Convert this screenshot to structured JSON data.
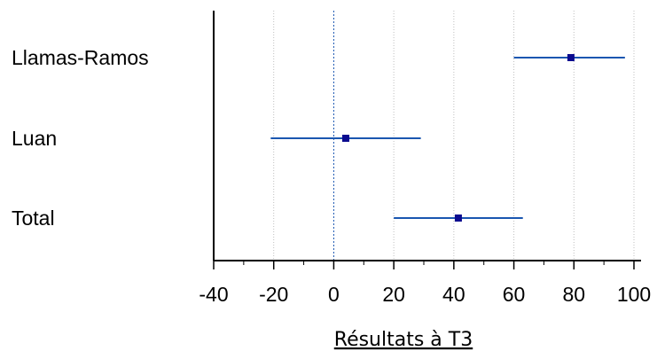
{
  "chart_data": {
    "type": "forest",
    "xlabel": "Résultats à T3",
    "xlim": [
      -40,
      100
    ],
    "x_ticks": [
      -40,
      -20,
      0,
      20,
      40,
      60,
      80,
      100
    ],
    "grid": "vertical dotted",
    "studies": [
      {
        "label": "Llamas-Ramos",
        "estimate": 79,
        "ci_low": 60,
        "ci_high": 97
      },
      {
        "label": "Luan",
        "estimate": 4,
        "ci_low": -21,
        "ci_high": 29
      },
      {
        "label": "Total",
        "estimate": 41.5,
        "ci_low": 20,
        "ci_high": 63
      }
    ],
    "colors": {
      "marker": "#0b0b8f",
      "line": "#1a56b0",
      "axis": "#000000",
      "grid": "#bfbfbf",
      "reference": "#1a56b0"
    }
  }
}
